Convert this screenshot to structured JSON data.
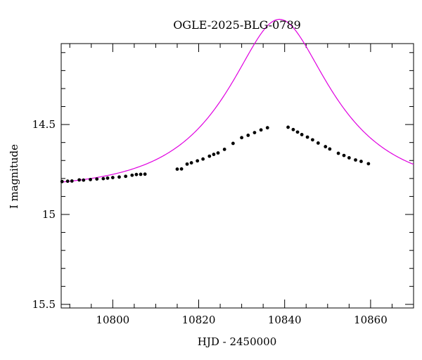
{
  "chart_data": {
    "type": "scatter",
    "title": "OGLE-2025-BLG-0789",
    "xlabel": "HJD - 2450000",
    "ylabel": "I magnitude",
    "xlim": [
      10788,
      10870
    ],
    "ylim": [
      15.52,
      14.05
    ],
    "y_inverted": true,
    "x_ticks": [
      10800,
      10820,
      10840,
      10860
    ],
    "y_ticks": [
      14.5,
      15,
      15.5
    ],
    "y_tick_labels": [
      "14.5",
      "15",
      "15.5"
    ],
    "x_minor_step": 5,
    "y_minor_step": 0.1,
    "grid": false,
    "colors": {
      "points": "#000000",
      "model": "#e000e0",
      "frame": "#000000"
    },
    "series": [
      {
        "type": "scatter",
        "points": [
          [
            10788.2,
            14.817
          ],
          [
            10789.5,
            14.815
          ],
          [
            10790.5,
            14.814
          ],
          [
            10792.2,
            14.808
          ],
          [
            10793.2,
            14.809
          ],
          [
            10794.8,
            14.806
          ],
          [
            10796.3,
            14.803
          ],
          [
            10797.8,
            14.801
          ],
          [
            10798.8,
            14.798
          ],
          [
            10800.0,
            14.795
          ],
          [
            10801.5,
            14.792
          ],
          [
            10803.0,
            14.788
          ],
          [
            10804.5,
            14.782
          ],
          [
            10805.5,
            14.778
          ],
          [
            10806.5,
            14.777
          ],
          [
            10807.5,
            14.776
          ],
          [
            10815.0,
            14.748
          ],
          [
            10816.0,
            14.747
          ],
          [
            10817.3,
            14.72
          ],
          [
            10818.3,
            14.713
          ],
          [
            10819.7,
            14.702
          ],
          [
            10821.0,
            14.692
          ],
          [
            10822.5,
            14.676
          ],
          [
            10823.5,
            14.666
          ],
          [
            10824.5,
            14.658
          ],
          [
            10826.0,
            14.638
          ],
          [
            10828.0,
            14.605
          ],
          [
            10830.0,
            14.573
          ],
          [
            10831.5,
            14.56
          ],
          [
            10833.0,
            14.545
          ],
          [
            10834.5,
            14.53
          ],
          [
            10836.0,
            14.518
          ],
          [
            10840.8,
            14.515
          ],
          [
            10842.0,
            14.528
          ],
          [
            10843.0,
            14.542
          ],
          [
            10844.0,
            14.556
          ],
          [
            10845.3,
            14.57
          ],
          [
            10846.5,
            14.585
          ],
          [
            10847.8,
            14.603
          ],
          [
            10849.5,
            14.623
          ],
          [
            10850.5,
            14.636
          ],
          [
            10852.5,
            14.66
          ],
          [
            10853.8,
            14.672
          ],
          [
            10855.0,
            14.685
          ],
          [
            10856.5,
            14.697
          ],
          [
            10857.8,
            14.705
          ],
          [
            10859.5,
            14.718
          ]
        ]
      },
      {
        "type": "line",
        "model": {
          "t0": 10838.8,
          "tE": 22,
          "u0": 0.45,
          "base_mag": 14.86
        }
      }
    ]
  }
}
